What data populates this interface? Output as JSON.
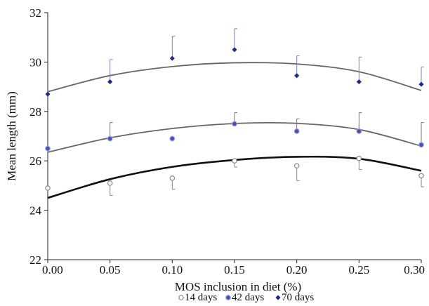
{
  "chart_data": {
    "type": "scatter",
    "title": "",
    "xlabel": "MOS inclusion in diet (%)",
    "ylabel": "Mean length (mm)",
    "xlim": [
      0,
      0.3
    ],
    "ylim": [
      22,
      32
    ],
    "x_ticks": [
      "0.00",
      "0.05",
      "0.10",
      "0.15",
      "0.20",
      "0.25",
      "0.30"
    ],
    "y_ticks": [
      "22",
      "24",
      "26",
      "28",
      "30",
      "32"
    ],
    "legend_position": "bottom",
    "series": [
      {
        "name": "14 days",
        "marker": "open-circle",
        "color": "#999999",
        "x": [
          0.0,
          0.05,
          0.1,
          0.15,
          0.2,
          0.25,
          0.3
        ],
        "y": [
          24.9,
          25.1,
          25.3,
          26.0,
          25.8,
          26.1,
          25.4
        ],
        "err_up": [
          0.0,
          0.0,
          0.0,
          0.0,
          0.0,
          0.0,
          0.0
        ],
        "err_down": [
          0.0,
          0.5,
          0.45,
          0.25,
          0.6,
          0.45,
          0.45
        ],
        "fit": [
          24.5,
          25.258,
          25.757,
          26.036,
          26.165,
          26.086,
          25.6
        ],
        "fit_color": "#111111"
      },
      {
        "name": "42 days",
        "marker": "filled-circle-light",
        "color": "#3a3fa0",
        "x": [
          0.0,
          0.05,
          0.1,
          0.15,
          0.2,
          0.25,
          0.3
        ],
        "y": [
          26.5,
          26.9,
          26.9,
          27.5,
          27.2,
          27.2,
          26.65
        ],
        "err_up": [
          0.0,
          0.65,
          0.0,
          0.45,
          0.5,
          0.75,
          0.9
        ],
        "err_down": [
          0.0,
          0.0,
          0.0,
          0.0,
          0.0,
          0.0,
          0.0
        ],
        "fit": [
          26.35,
          26.932,
          27.309,
          27.511,
          27.518,
          27.268,
          26.6
        ],
        "fit_color": "#666666"
      },
      {
        "name": "70 days",
        "marker": "filled-diamond",
        "color": "#1f2a8a",
        "x": [
          0.0,
          0.05,
          0.1,
          0.15,
          0.2,
          0.25,
          0.3
        ],
        "y": [
          28.7,
          29.2,
          30.15,
          30.5,
          29.45,
          29.2,
          29.1
        ],
        "err_up": [
          0.0,
          0.9,
          0.9,
          0.85,
          0.8,
          1.0,
          0.7
        ],
        "err_down": [
          0.0,
          0.0,
          0.0,
          0.0,
          0.0,
          0.0,
          0.0
        ],
        "fit": [
          28.8,
          29.452,
          29.817,
          29.97,
          29.922,
          29.607,
          28.85
        ],
        "fit_color": "#666666"
      }
    ]
  }
}
